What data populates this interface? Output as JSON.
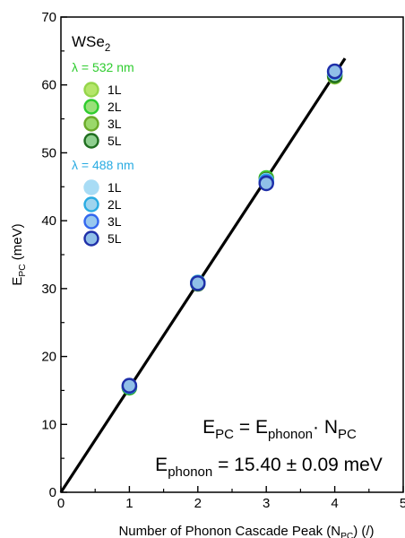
{
  "chart_data": {
    "type": "scatter",
    "title": "",
    "material_parts": [
      "WSe",
      "2"
    ],
    "xlabel_parts": [
      "Number of Phonon Cascade Peak (N",
      "PC",
      ") (/)"
    ],
    "ylabel_parts": [
      "E",
      "PC",
      " (meV)"
    ],
    "xlim": [
      0,
      5
    ],
    "ylim": [
      0,
      70
    ],
    "x_ticks": [
      "0",
      "1",
      "2",
      "3",
      "4",
      "5"
    ],
    "y_ticks": [
      "0",
      "10",
      "20",
      "30",
      "40",
      "50",
      "60",
      "70"
    ],
    "fit": {
      "slope": 15.4,
      "intercept": 0,
      "x_range": [
        0,
        4.15
      ],
      "color": "#000000"
    },
    "groups": [
      {
        "heading": "λ = 532 nm",
        "color": "#2ecc2e",
        "series": [
          {
            "name": "1L",
            "fill": "#b5e66a",
            "stroke": "#95d54a",
            "x": [
              1,
              2,
              3,
              4
            ],
            "y": [
              15.5,
              30.8,
              46.2,
              61.2
            ]
          },
          {
            "name": "2L",
            "fill": "#9ae07a",
            "stroke": "#2ecc2e",
            "x": [
              1,
              2,
              3,
              4
            ],
            "y": [
              15.4,
              30.8,
              46.3,
              61.5
            ]
          },
          {
            "name": "3L",
            "fill": "#9ad86a",
            "stroke": "#6aaa28",
            "x": [
              1,
              2,
              3,
              4
            ],
            "y": [
              15.6,
              30.9,
              46.1,
              61.3
            ]
          },
          {
            "name": "5L",
            "fill": "#8fcf8f",
            "stroke": "#1f6e1f",
            "x": [
              1,
              2,
              3,
              4
            ],
            "y": [
              15.5,
              30.7,
              46.0,
              61.4
            ]
          }
        ]
      },
      {
        "heading": "λ = 488 nm",
        "color": "#29abe2",
        "series": [
          {
            "name": "1L",
            "fill": "#a8dcf5",
            "stroke": "#a8dcf5",
            "x": [
              1,
              2,
              3,
              4
            ],
            "y": [
              15.6,
              30.8,
              45.9,
              61.8
            ]
          },
          {
            "name": "2L",
            "fill": "#9fd4ee",
            "stroke": "#29abe2",
            "x": [
              1,
              2,
              3,
              4
            ],
            "y": [
              15.6,
              30.9,
              45.8,
              61.9
            ]
          },
          {
            "name": "3L",
            "fill": "#98c8ee",
            "stroke": "#3366ee",
            "x": [
              1,
              2,
              3,
              4
            ],
            "y": [
              15.7,
              30.8,
              45.6,
              62.0
            ]
          },
          {
            "name": "5L",
            "fill": "#90bfe8",
            "stroke": "#1f2fa8",
            "x": [
              1,
              2,
              3,
              4
            ],
            "y": [
              15.7,
              30.8,
              45.5,
              62.0
            ]
          }
        ]
      }
    ],
    "equation_1": {
      "lhs": [
        "E",
        "PC"
      ],
      "mid": [
        "E",
        "phonon"
      ],
      "rhs": [
        "N",
        "PC"
      ]
    },
    "equation_2": {
      "lhs": [
        "E",
        "phonon"
      ],
      "value": " = 15.40 ± 0.09 meV"
    }
  }
}
